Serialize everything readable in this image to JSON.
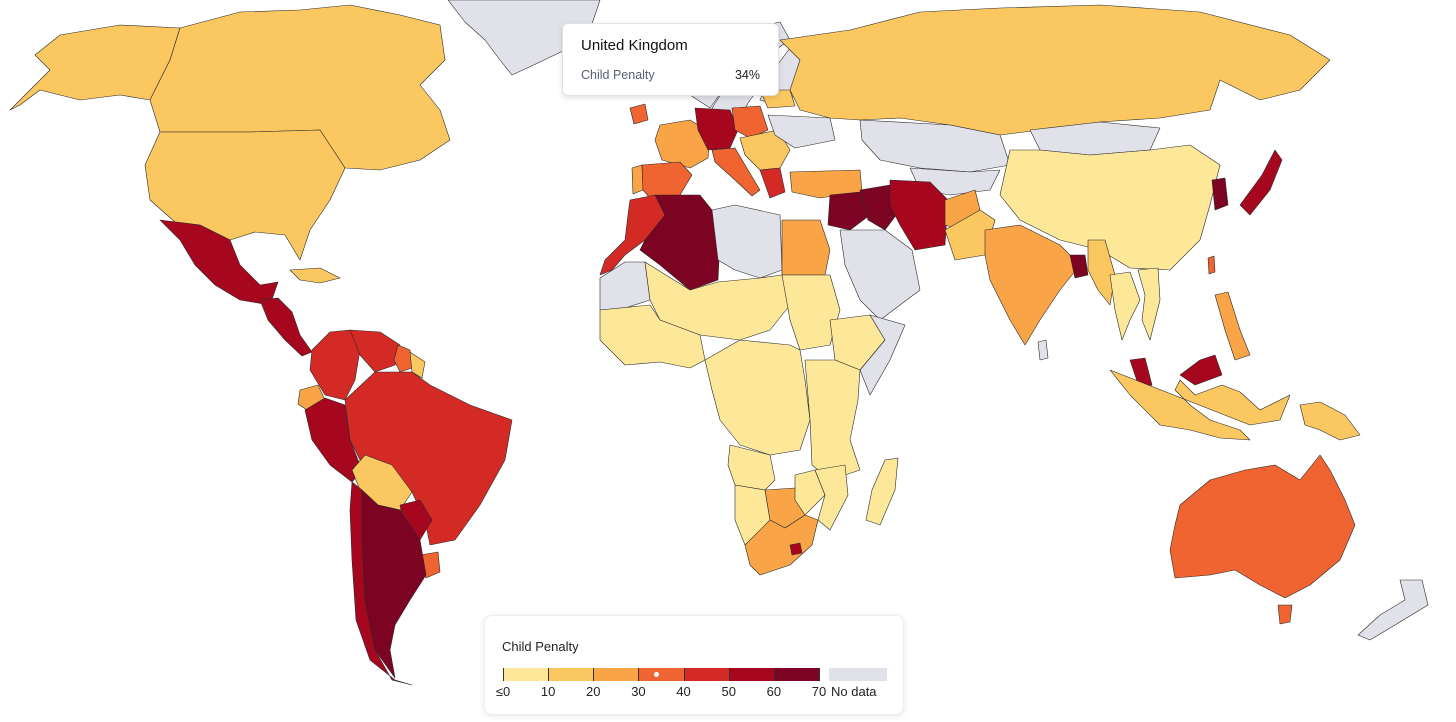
{
  "tooltip": {
    "country": "United Kingdom",
    "metric_label": "Child Penalty",
    "value_text": "34%"
  },
  "legend": {
    "title": "Child Penalty",
    "ticks": [
      "≤0",
      "10",
      "20",
      "30",
      "40",
      "50",
      "60",
      "70"
    ],
    "no_data_label": "No data",
    "colors": [
      "#fde89a",
      "#fbc760",
      "#f9a547",
      "#ef6430",
      "#d42a25",
      "#a7071e",
      "#7d0323",
      "#6b0022"
    ],
    "no_data_color": "#e1e1ea",
    "highlight_value": 34
  },
  "map": {
    "highlighted_country": "United Kingdom",
    "country_values": {
      "Canada": 18,
      "Alaska": 16,
      "United States": 17,
      "Greenland": null,
      "Mexico": 55,
      "Central America": 50,
      "Cuba": 14,
      "Colombia": 45,
      "Venezuela": 45,
      "Guyana": 30,
      "Suriname": 16,
      "Ecuador": 28,
      "Peru": 55,
      "Brazil": 45,
      "Bolivia": 18,
      "Paraguay": 55,
      "Chile": 50,
      "Argentina": 62,
      "Uruguay": 30,
      "United Kingdom": 34,
      "Ireland": 32,
      "Iceland": null,
      "Norway": null,
      "Sweden": null,
      "Finland": null,
      "France": 22,
      "Spain": 36,
      "Portugal": 20,
      "Germany": 52,
      "Poland": 32,
      "Italy": 33,
      "Balkans": 18,
      "Greece": 40,
      "Turkey": 22,
      "Ukraine": null,
      "Baltics": 14,
      "Russia": 14,
      "Morocco": 48,
      "Algeria": 62,
      "Libya": null,
      "Egypt": 20,
      "Mauritania": null,
      "West Africa": 7,
      "Sahel": 6,
      "Sudan": 8,
      "Ethiopia": 8,
      "Somalia": null,
      "Central Africa": 2,
      "East Africa": 3,
      "Angola": 6,
      "Namibia": 9,
      "Botswana": 20,
      "Zimbabwe": 7,
      "Mozambique": 5,
      "South Africa": 22,
      "Lesotho": 55,
      "Madagascar": 7,
      "Middle East": 60,
      "Iraq": 62,
      "Iran": 58,
      "Arabian Peninsula": null,
      "Central Asia": null,
      "Afghanistan": 26,
      "Pakistan": 12,
      "India": 20,
      "Bangladesh": 62,
      "Myanmar": 10,
      "Thailand": 8,
      "Vietnam": 6,
      "Mongolia": null,
      "China": 4,
      "Korea": 62,
      "Japan": 55,
      "Taiwan": 32,
      "Philippines": 20,
      "Malaysia": 58,
      "Borneo Malaysia": 55,
      "Indonesia": 14,
      "Papua New Guinea": 11,
      "Australia": 32,
      "Tasmania": 32,
      "New Zealand": null,
      "Sri Lanka": null,
      "Kazakhstan": null,
      "Saudi Arabia": null
    }
  }
}
